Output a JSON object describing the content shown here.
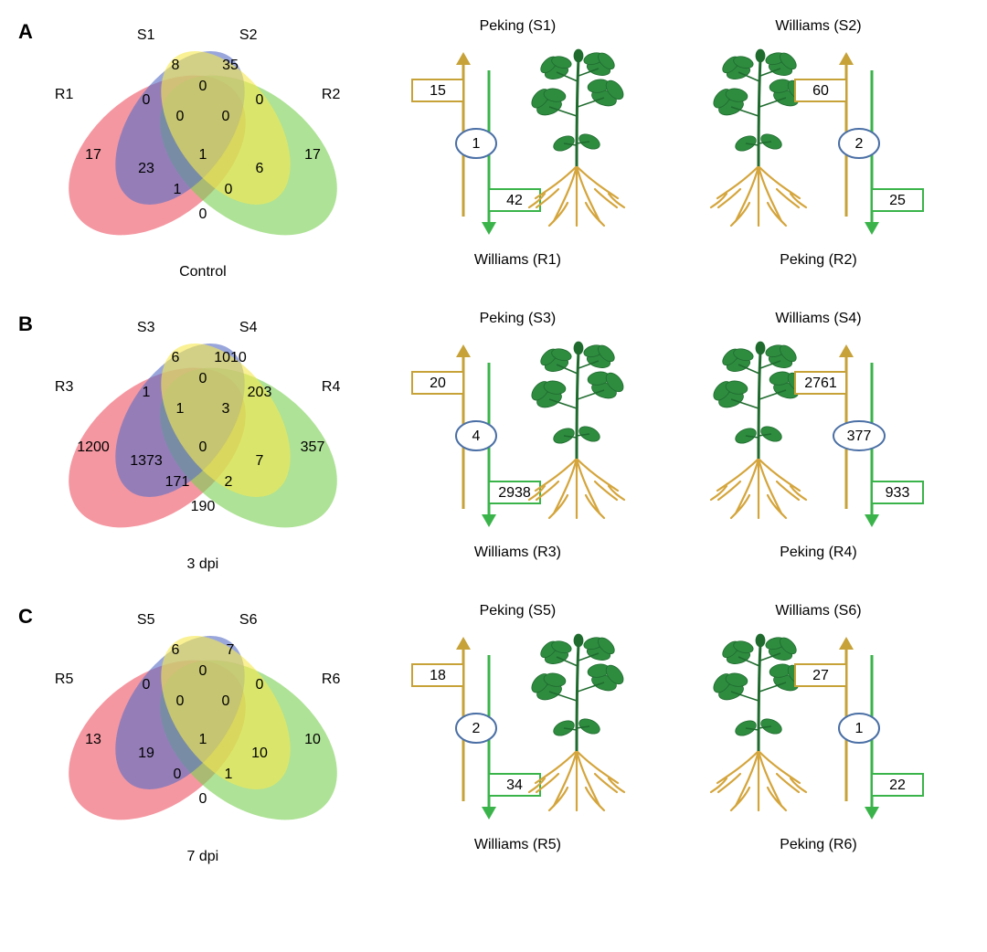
{
  "colors": {
    "venn_R": "#ef5767",
    "venn_S1": "#5b6fc7",
    "venn_S2": "#f5e951",
    "venn_S2b": "#7cd156",
    "venn_opacity": 0.62,
    "arrow_up": "#c6a238",
    "arrow_down": "#3ab44a",
    "circle_stroke": "#4a6fa5",
    "plant_leaf": "#2e8c3f",
    "plant_leaf_dark": "#1f6b2e",
    "plant_stem": "#1f6b2e",
    "plant_root": "#d4a53c"
  },
  "panels": [
    {
      "id": "A",
      "caption": "Control",
      "venn_labels": {
        "R_left": "R1",
        "S_left": "S1",
        "S_right": "S2",
        "R_right": "R2"
      },
      "venn_values": {
        "R_only": "17",
        "S1_only": "8",
        "S2_only": "35",
        "R2_only": "17",
        "RS1": "0",
        "S1S2": "0",
        "S2R2": "0",
        "RS1S2": "0",
        "S1S2R2": "0",
        "RS2": "23",
        "S1R2": "6",
        "RS2cen": "1",
        "S1R2cen": "0",
        "center": "1",
        "RR2": "0"
      },
      "grafts": [
        {
          "top": "Peking (S1)",
          "bottom": "Williams (R1)",
          "up": "15",
          "mid": "1",
          "down": "42",
          "side": "left"
        },
        {
          "top": "Williams (S2)",
          "bottom": "Peking (R2)",
          "up": "60",
          "mid": "2",
          "down": "25",
          "side": "right"
        }
      ]
    },
    {
      "id": "B",
      "caption": "3 dpi",
      "venn_labels": {
        "R_left": "R3",
        "S_left": "S3",
        "S_right": "S4",
        "R_right": "R4"
      },
      "venn_values": {
        "R_only": "1200",
        "S1_only": "6",
        "S2_only": "1010",
        "R2_only": "357",
        "RS1": "1",
        "S1S2": "0",
        "S2R2": "203",
        "RS1S2": "1",
        "S1S2R2": "3",
        "RS2": "1373",
        "S1R2": "7",
        "RS2cen": "171",
        "S1R2cen": "2",
        "center": "0",
        "RR2": "190"
      },
      "grafts": [
        {
          "top": "Peking (S3)",
          "bottom": "Williams (R3)",
          "up": "20",
          "mid": "4",
          "down": "2938",
          "side": "left"
        },
        {
          "top": "Williams (S4)",
          "bottom": "Peking (R4)",
          "up": "2761",
          "mid": "377",
          "down": "933",
          "side": "right"
        }
      ]
    },
    {
      "id": "C",
      "caption": "7 dpi",
      "venn_labels": {
        "R_left": "R5",
        "S_left": "S5",
        "S_right": "S6",
        "R_right": "R6"
      },
      "venn_values": {
        "R_only": "13",
        "S1_only": "6",
        "S2_only": "7",
        "R2_only": "10",
        "RS1": "0",
        "S1S2": "0",
        "S2R2": "0",
        "RS1S2": "0",
        "S1S2R2": "0",
        "RS2": "19",
        "S1R2": "10",
        "RS2cen": "0",
        "S1R2cen": "1",
        "center": "1",
        "RR2": "0"
      },
      "grafts": [
        {
          "top": "Peking (S5)",
          "bottom": "Williams (R5)",
          "up": "18",
          "mid": "2",
          "down": "34",
          "side": "left"
        },
        {
          "top": "Williams (S6)",
          "bottom": "Peking (R6)",
          "up": "27",
          "mid": "1",
          "down": "22",
          "side": "right"
        }
      ]
    }
  ]
}
